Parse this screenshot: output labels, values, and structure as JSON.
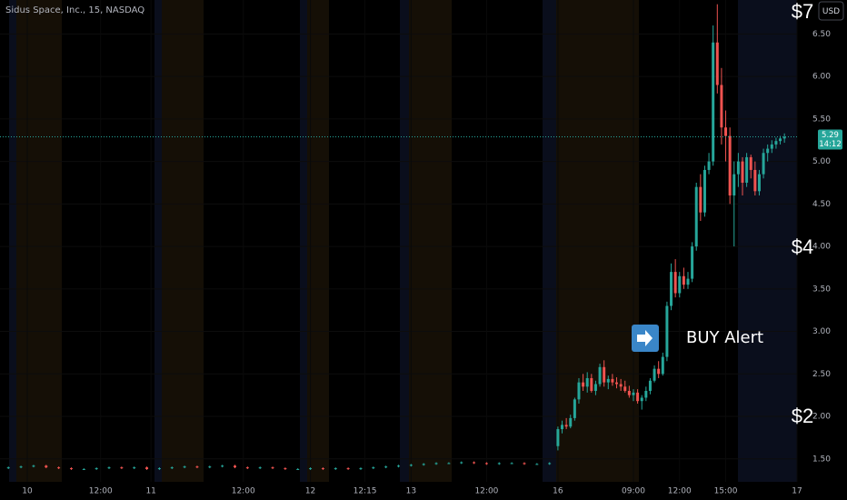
{
  "chart_data": {
    "type": "candlestick",
    "title": "Sidus Space, Inc., 15, NASDAQ",
    "currency": "USD",
    "up_color": "#26a69a",
    "down_color": "#ef5350",
    "current_price": 5.29,
    "countdown": "14:12",
    "annotations": [
      "$7",
      "$4",
      "$2"
    ],
    "alert_label": "BUY Alert",
    "xlim": [
      0,
      190
    ],
    "xticks": [
      {
        "value": 6.5,
        "label": "10"
      },
      {
        "value": 24,
        "label": "12:00"
      },
      {
        "value": 36,
        "label": "11"
      },
      {
        "value": 58,
        "label": "12:00"
      },
      {
        "value": 74,
        "label": "12"
      },
      {
        "value": 87,
        "label": "12:15"
      },
      {
        "value": 98,
        "label": "13"
      },
      {
        "value": 116,
        "label": "12:00"
      },
      {
        "value": 133,
        "label": "16"
      },
      {
        "value": 151,
        "label": "09:00"
      },
      {
        "value": 162,
        "label": "12:00"
      },
      {
        "value": 173,
        "label": "15:00"
      },
      {
        "value": 190,
        "label": "17"
      }
    ],
    "ylim": [
      1.23,
      6.9
    ],
    "yticks": [
      {
        "value": 1.5,
        "label": "1.50"
      },
      {
        "value": 2.0,
        "label": "2.00"
      },
      {
        "value": 2.5,
        "label": "2.50"
      },
      {
        "value": 3.0,
        "label": "3.00"
      },
      {
        "value": 3.5,
        "label": "3.50"
      },
      {
        "value": 4.0,
        "label": "4.00"
      },
      {
        "value": 4.5,
        "label": "4.50"
      },
      {
        "value": 5.0,
        "label": "5.00"
      },
      {
        "value": 5.5,
        "label": "5.50"
      },
      {
        "value": 6.0,
        "label": "6.00"
      },
      {
        "value": 6.5,
        "label": "6.50"
      }
    ],
    "x": [
      2,
      5,
      8,
      11,
      14,
      17,
      20,
      23,
      26,
      29,
      32,
      35,
      38,
      41,
      44,
      47,
      50,
      53,
      56,
      59,
      62,
      65,
      68,
      71,
      74,
      77,
      80,
      83,
      86,
      89,
      92,
      95,
      98,
      101,
      104,
      107,
      110,
      113,
      116,
      119,
      122,
      125,
      128,
      131,
      133,
      134,
      135,
      136,
      137,
      138,
      139,
      140,
      141,
      142,
      143,
      144,
      145,
      146,
      147,
      148,
      149,
      150,
      151,
      152,
      153,
      154,
      155,
      156,
      157,
      158,
      159,
      160,
      161,
      162,
      163,
      164,
      165,
      166,
      167,
      168,
      169,
      170,
      171,
      172,
      173,
      174,
      175,
      176,
      177,
      178,
      179,
      180,
      181,
      182,
      183,
      184,
      185,
      186,
      187
    ],
    "open": [
      1.39,
      1.4,
      1.41,
      1.42,
      1.4,
      1.39,
      1.38,
      1.38,
      1.39,
      1.4,
      1.39,
      1.4,
      1.38,
      1.39,
      1.4,
      1.41,
      1.4,
      1.41,
      1.42,
      1.4,
      1.39,
      1.4,
      1.39,
      1.38,
      1.38,
      1.39,
      1.38,
      1.39,
      1.38,
      1.39,
      1.4,
      1.41,
      1.42,
      1.43,
      1.44,
      1.45,
      1.45,
      1.46,
      1.45,
      1.44,
      1.45,
      1.45,
      1.44,
      1.44,
      1.65,
      1.85,
      1.9,
      1.88,
      1.98,
      2.2,
      2.4,
      2.35,
      2.45,
      2.3,
      2.38,
      2.58,
      2.4,
      2.44,
      2.4,
      2.38,
      2.35,
      2.3,
      2.25,
      2.28,
      2.18,
      2.22,
      2.3,
      2.42,
      2.56,
      2.5,
      2.7,
      3.3,
      3.7,
      3.45,
      3.65,
      3.55,
      3.62,
      4.0,
      4.7,
      4.4,
      4.9,
      5.0,
      6.4,
      5.9,
      5.4,
      5.3,
      4.6,
      4.85,
      5.0,
      4.75,
      5.05,
      4.9,
      4.65,
      4.85,
      5.1,
      5.15,
      5.2,
      5.24,
      5.27
    ],
    "high": [
      1.41,
      1.42,
      1.43,
      1.43,
      1.41,
      1.4,
      1.39,
      1.4,
      1.41,
      1.41,
      1.41,
      1.41,
      1.4,
      1.41,
      1.42,
      1.42,
      1.42,
      1.43,
      1.43,
      1.41,
      1.41,
      1.41,
      1.4,
      1.39,
      1.4,
      1.4,
      1.4,
      1.4,
      1.4,
      1.41,
      1.42,
      1.43,
      1.44,
      1.45,
      1.46,
      1.46,
      1.47,
      1.47,
      1.46,
      1.46,
      1.46,
      1.46,
      1.45,
      1.46,
      1.88,
      1.95,
      1.98,
      2.02,
      2.22,
      2.45,
      2.5,
      2.52,
      2.5,
      2.42,
      2.62,
      2.66,
      2.48,
      2.5,
      2.46,
      2.44,
      2.42,
      2.36,
      2.32,
      2.32,
      2.25,
      2.35,
      2.45,
      2.6,
      2.65,
      2.75,
      3.35,
      3.8,
      3.85,
      3.7,
      3.75,
      3.7,
      4.05,
      4.75,
      4.85,
      4.95,
      5.1,
      6.6,
      6.85,
      6.1,
      5.6,
      5.4,
      5.0,
      5.1,
      5.05,
      5.1,
      5.08,
      5.0,
      4.9,
      5.15,
      5.2,
      5.25,
      5.28,
      5.3,
      5.33
    ],
    "low": [
      1.38,
      1.39,
      1.4,
      1.39,
      1.38,
      1.37,
      1.37,
      1.37,
      1.38,
      1.38,
      1.38,
      1.37,
      1.37,
      1.38,
      1.39,
      1.39,
      1.39,
      1.4,
      1.39,
      1.38,
      1.38,
      1.38,
      1.37,
      1.37,
      1.37,
      1.37,
      1.37,
      1.37,
      1.37,
      1.38,
      1.39,
      1.4,
      1.41,
      1.42,
      1.43,
      1.44,
      1.44,
      1.44,
      1.43,
      1.43,
      1.44,
      1.43,
      1.43,
      1.43,
      1.6,
      1.8,
      1.85,
      1.86,
      1.95,
      2.15,
      2.3,
      2.28,
      2.28,
      2.25,
      2.35,
      2.35,
      2.32,
      2.36,
      2.33,
      2.3,
      2.28,
      2.22,
      2.18,
      2.15,
      2.08,
      2.18,
      2.26,
      2.4,
      2.45,
      2.48,
      2.65,
      3.25,
      3.4,
      3.4,
      3.5,
      3.5,
      3.58,
      3.95,
      4.3,
      4.35,
      4.85,
      4.95,
      5.8,
      5.2,
      5.0,
      4.5,
      4.0,
      4.7,
      4.6,
      4.7,
      4.8,
      4.6,
      4.6,
      4.8,
      5.0,
      5.1,
      5.15,
      5.2,
      5.22
    ],
    "close": [
      1.4,
      1.41,
      1.42,
      1.4,
      1.39,
      1.38,
      1.38,
      1.39,
      1.4,
      1.39,
      1.4,
      1.38,
      1.39,
      1.4,
      1.41,
      1.4,
      1.41,
      1.42,
      1.4,
      1.39,
      1.4,
      1.39,
      1.38,
      1.38,
      1.39,
      1.38,
      1.39,
      1.38,
      1.39,
      1.4,
      1.41,
      1.42,
      1.43,
      1.44,
      1.45,
      1.45,
      1.46,
      1.45,
      1.44,
      1.45,
      1.45,
      1.44,
      1.44,
      1.45,
      1.85,
      1.9,
      1.88,
      1.98,
      2.2,
      2.4,
      2.35,
      2.45,
      2.3,
      2.38,
      2.58,
      2.4,
      2.44,
      2.4,
      2.38,
      2.35,
      2.3,
      2.25,
      2.28,
      2.18,
      2.22,
      2.3,
      2.42,
      2.56,
      2.5,
      2.7,
      3.3,
      3.7,
      3.45,
      3.65,
      3.55,
      3.62,
      4.0,
      4.7,
      4.4,
      4.9,
      5.0,
      6.4,
      5.9,
      5.4,
      5.3,
      4.6,
      4.85,
      5.0,
      4.75,
      5.05,
      4.9,
      4.65,
      4.85,
      5.1,
      5.15,
      5.2,
      5.24,
      5.27,
      5.29
    ]
  }
}
